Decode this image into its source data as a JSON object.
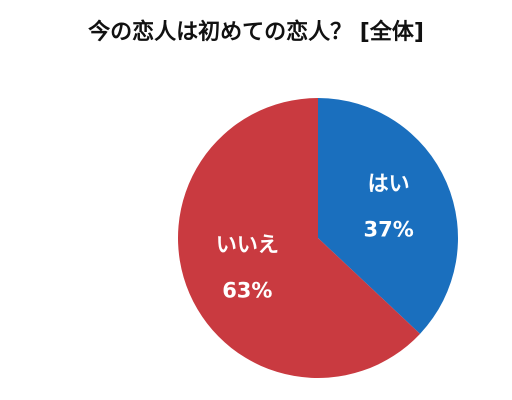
{
  "chart_data": {
    "type": "pie",
    "title": "今の恋人は初めての恋人？ [全体]",
    "categories": [
      "はい",
      "いいえ"
    ],
    "values": [
      37,
      63
    ],
    "value_labels": [
      "37%",
      "63%"
    ],
    "colors": [
      "#1a6fbe",
      "#c93a40"
    ]
  }
}
